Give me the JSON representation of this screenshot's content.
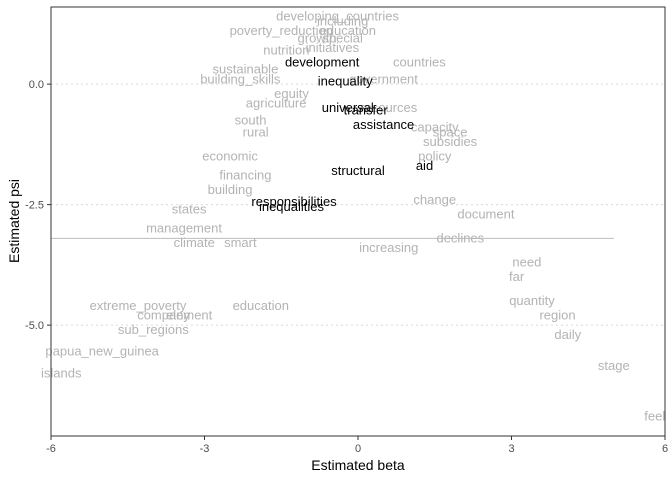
{
  "chart_data": {
    "type": "scatter",
    "xlabel": "Estimated beta",
    "ylabel": "Estimated psi",
    "xlim": [
      -6,
      6
    ],
    "ylim": [
      -7.3,
      1.6
    ],
    "xticks": [
      "-6",
      "-3",
      "0",
      "3",
      "6"
    ],
    "yticks": [
      "0.0",
      "-2.5",
      "-5.0"
    ],
    "xtick_values": [
      -6,
      -3,
      0,
      3,
      6
    ],
    "ytick_values": [
      0,
      -2.5,
      -5
    ],
    "grid": "dotted horizontal major lines",
    "reference_line": {
      "y": -3.2,
      "x_from": -6,
      "x_to": 5
    },
    "highlight_color": "#000000",
    "background_word_color": "#b3b3b3",
    "highlighted_words": [
      {
        "word": "development",
        "x": -0.7,
        "y": 0.45
      },
      {
        "word": "inequality",
        "x": -0.25,
        "y": 0.05
      },
      {
        "word": "universal",
        "x": -0.2,
        "y": -0.5
      },
      {
        "word": "transfer",
        "x": 0.15,
        "y": -0.55
      },
      {
        "word": "assistance",
        "x": 0.5,
        "y": -0.85
      },
      {
        "word": "aid",
        "x": 1.3,
        "y": -1.7
      },
      {
        "word": "structural",
        "x": 0,
        "y": -1.8
      },
      {
        "word": "responsibilities",
        "x": -1.25,
        "y": -2.45
      },
      {
        "word": "inequalities",
        "x": -1.3,
        "y": -2.55
      }
    ],
    "background_words": [
      {
        "word": "developing_countries",
        "x": -0.4,
        "y": 1.4
      },
      {
        "word": "including",
        "x": -0.3,
        "y": 1.3
      },
      {
        "word": "poverty_reduction",
        "x": -1.5,
        "y": 1.1
      },
      {
        "word": "education",
        "x": -0.2,
        "y": 1.1
      },
      {
        "word": "growth",
        "x": -0.8,
        "y": 0.95
      },
      {
        "word": "special",
        "x": -0.3,
        "y": 0.95
      },
      {
        "word": "nutrition",
        "x": -1.4,
        "y": 0.7
      },
      {
        "word": "initiatives",
        "x": -0.5,
        "y": 0.75
      },
      {
        "word": "countries",
        "x": 1.2,
        "y": 0.45
      },
      {
        "word": "sustainable",
        "x": -2.2,
        "y": 0.3
      },
      {
        "word": "building_skills",
        "x": -2.3,
        "y": 0.1
      },
      {
        "word": "government",
        "x": 0.5,
        "y": 0.1
      },
      {
        "word": "equity",
        "x": -1.3,
        "y": -0.2
      },
      {
        "word": "agriculture",
        "x": -1.6,
        "y": -0.4
      },
      {
        "word": "resources",
        "x": 0.6,
        "y": -0.5
      },
      {
        "word": "south",
        "x": -2.1,
        "y": -0.75
      },
      {
        "word": "capacity",
        "x": 1.5,
        "y": -0.9
      },
      {
        "word": "rural",
        "x": -2.0,
        "y": -1.0
      },
      {
        "word": "subsidies",
        "x": 1.8,
        "y": -1.2
      },
      {
        "word": "space",
        "x": 1.8,
        "y": -1.0
      },
      {
        "word": "economic",
        "x": -2.5,
        "y": -1.5
      },
      {
        "word": "policy",
        "x": 1.5,
        "y": -1.5
      },
      {
        "word": "financing",
        "x": -2.2,
        "y": -1.9
      },
      {
        "word": "building",
        "x": -2.5,
        "y": -2.2
      },
      {
        "word": "change",
        "x": 1.5,
        "y": -2.4
      },
      {
        "word": "states",
        "x": -3.3,
        "y": -2.6
      },
      {
        "word": "management",
        "x": -3.4,
        "y": -3.0
      },
      {
        "word": "climate",
        "x": -3.2,
        "y": -3.3
      },
      {
        "word": "smart",
        "x": -2.3,
        "y": -3.3
      },
      {
        "word": "document",
        "x": 2.5,
        "y": -2.7
      },
      {
        "word": "declines",
        "x": 2.0,
        "y": -3.2
      },
      {
        "word": "increasing",
        "x": 0.6,
        "y": -3.4
      },
      {
        "word": "need",
        "x": 3.3,
        "y": -3.7
      },
      {
        "word": "far",
        "x": 3.1,
        "y": -4.0
      },
      {
        "word": "extreme_poverty",
        "x": -4.3,
        "y": -4.6
      },
      {
        "word": "education",
        "x": -1.9,
        "y": -4.6
      },
      {
        "word": "company",
        "x": -3.8,
        "y": -4.8
      },
      {
        "word": "element",
        "x": -3.3,
        "y": -4.8
      },
      {
        "word": "sub_regions",
        "x": -4.0,
        "y": -5.1
      },
      {
        "word": "papua_new_guinea",
        "x": -5.0,
        "y": -5.55
      },
      {
        "word": "islands",
        "x": -5.8,
        "y": -6.0
      },
      {
        "word": "quantity",
        "x": 3.4,
        "y": -4.5
      },
      {
        "word": "region",
        "x": 3.9,
        "y": -4.8
      },
      {
        "word": "daily",
        "x": 4.1,
        "y": -5.2
      },
      {
        "word": "stage",
        "x": 5.0,
        "y": -5.85
      },
      {
        "word": "feel",
        "x": 5.8,
        "y": -6.9
      }
    ]
  }
}
